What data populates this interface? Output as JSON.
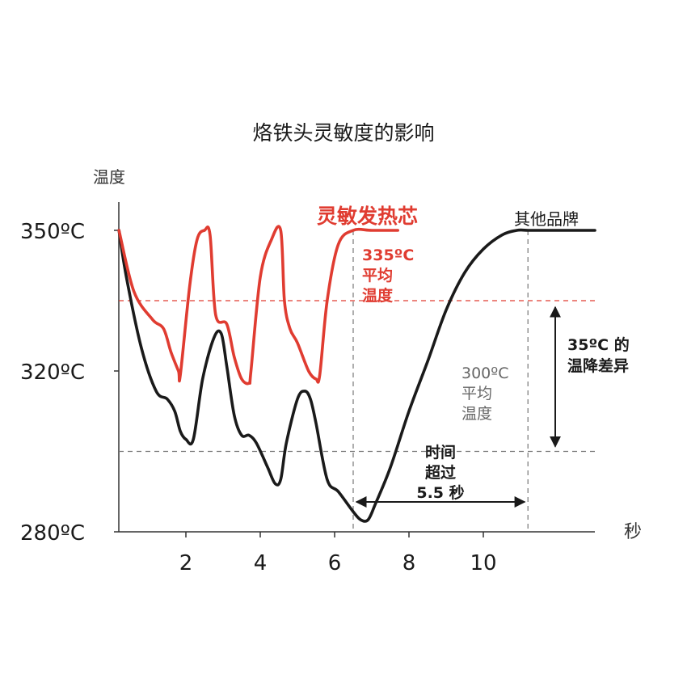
{
  "chart_data": {
    "type": "line",
    "title": "烙铁头灵敏度的影响",
    "xlabel": "秒",
    "ylabel": "温度",
    "x_ticks": [
      2,
      4,
      6,
      8,
      10
    ],
    "y_ticks": [
      {
        "value": 350,
        "label": "350ºC"
      },
      {
        "value": 320,
        "label": "320ºC"
      },
      {
        "value": 280,
        "label": "280ºC"
      }
    ],
    "xlim": [
      0.2,
      13.2
    ],
    "ylim": [
      280,
      350
    ],
    "grid": false,
    "series": [
      {
        "name": "灵敏发热芯",
        "color": "#e03c31",
        "x": [
          0.2,
          0.6,
          1.1,
          1.4,
          1.6,
          1.8,
          1.85,
          2.1,
          2.3,
          2.5,
          2.65,
          2.8,
          3.1,
          3.3,
          3.5,
          3.7,
          3.75,
          4.0,
          4.3,
          4.55,
          4.65,
          4.8,
          5.0,
          5.3,
          5.5,
          5.6,
          5.8,
          6.1,
          6.5,
          7.0,
          7.7
        ],
        "y": [
          350,
          337,
          331,
          329,
          324,
          320,
          319,
          338,
          348,
          350,
          349,
          332,
          330,
          323,
          318,
          317,
          320,
          340,
          348,
          350,
          335,
          329,
          326,
          320,
          318,
          319,
          335,
          347,
          350,
          350,
          350
        ]
      },
      {
        "name": "其他品牌",
        "color": "#1a1a1a",
        "x": [
          0.2,
          0.4,
          0.8,
          1.2,
          1.5,
          1.7,
          1.85,
          2.0,
          2.2,
          2.45,
          2.75,
          2.95,
          3.1,
          3.3,
          3.5,
          3.7,
          3.9,
          4.2,
          4.4,
          4.55,
          4.7,
          5.0,
          5.2,
          5.35,
          5.5,
          5.8,
          6.1,
          6.5,
          6.7,
          6.9,
          7.1,
          7.5,
          8.0,
          8.5,
          9.0,
          9.5,
          10.0,
          10.5,
          10.9,
          11.2,
          11.5,
          12.0,
          13.0
        ],
        "y": [
          350,
          340,
          325,
          315,
          313,
          310,
          305,
          303,
          303,
          318,
          327,
          328,
          321,
          309,
          304,
          304,
          302,
          296,
          292,
          293,
          302,
          313,
          315,
          313,
          307,
          293,
          290,
          285,
          283,
          283,
          287,
          296,
          310,
          322,
          333,
          341,
          346,
          349,
          350,
          350,
          350,
          350,
          350
        ]
      }
    ],
    "reference_lines": [
      {
        "axis": "y",
        "value": 335,
        "color": "#e03c31"
      },
      {
        "axis": "y",
        "value": 300,
        "color": "#777777"
      },
      {
        "axis": "x",
        "value": 6.5,
        "color": "#777777",
        "from": 280,
        "to": 350
      },
      {
        "axis": "x",
        "value": 11.2,
        "color": "#777777",
        "from": 280,
        "to": 350
      }
    ],
    "annotations": {
      "red_label": "灵敏发热芯",
      "black_label": "其他品牌",
      "red_avg": [
        "335ºC",
        "平均",
        "温度"
      ],
      "black_avg": [
        "300ºC",
        "平均",
        "温度"
      ],
      "diff": [
        "35ºC 的",
        "温降差异"
      ],
      "time": [
        "时间",
        "超过",
        "5.5 秒"
      ]
    }
  }
}
